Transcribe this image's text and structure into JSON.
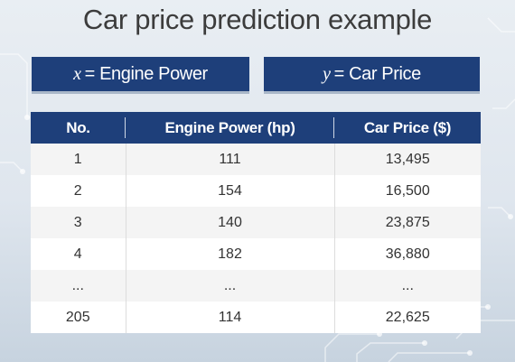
{
  "title": "Car price prediction example",
  "x_box": {
    "symbol": "x",
    "text": "= Engine Power"
  },
  "y_box": {
    "symbol": "y",
    "text": "= Car Price"
  },
  "table": {
    "headers": [
      "No.",
      "Engine Power (hp)",
      "Car Price ($)"
    ],
    "rows": [
      [
        "1",
        "111",
        "13,495"
      ],
      [
        "2",
        "154",
        "16,500"
      ],
      [
        "3",
        "140",
        "23,875"
      ],
      [
        "4",
        "182",
        "36,880"
      ],
      [
        "...",
        "...",
        "..."
      ],
      [
        "205",
        "114",
        "22,625"
      ]
    ]
  },
  "colors": {
    "header_bg": "#1e3f7a",
    "row_alt": "#f4f4f4",
    "title_text": "#3c3c3c"
  }
}
